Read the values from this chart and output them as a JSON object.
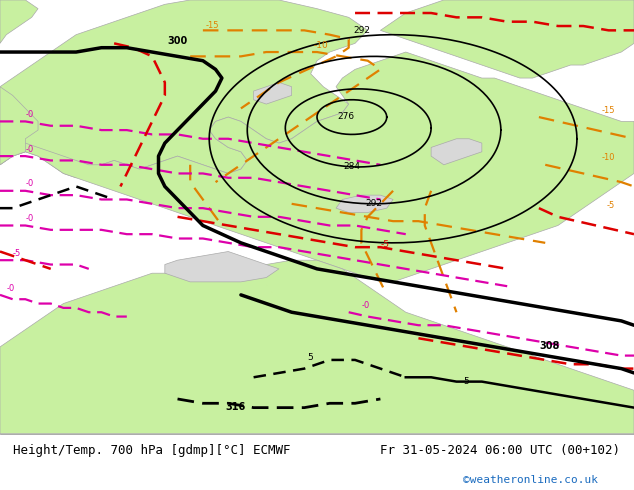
{
  "title_left": "Height/Temp. 700 hPa [gdmp][°C] ECMWF",
  "title_right": "Fr 31-05-2024 06:00 UTC (00+102)",
  "credit": "©weatheronline.co.uk",
  "bg_ocean": "#d8d8d8",
  "land_color": "#c8f0a0",
  "land_color2": "#d0f0a8",
  "coast_color": "#aaaaaa",
  "bottom_bar_color": "#ffffff",
  "bottom_text_color": "#000000",
  "credit_color": "#1a6bbf",
  "font_size_bottom": 9,
  "black_contour_color": "#000000",
  "orange_contour_color": "#e08000",
  "red_contour_color": "#dd0000",
  "magenta_contour_color": "#dd00aa"
}
